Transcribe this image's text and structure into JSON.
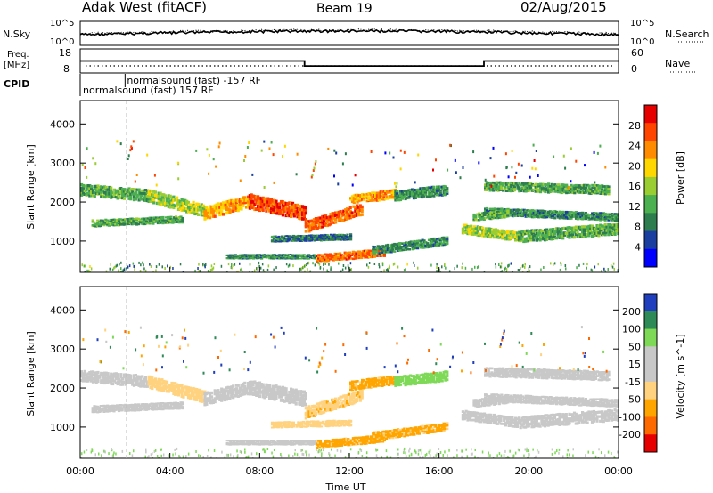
{
  "header": {
    "title": "Adak West (fitACF)",
    "beam": "Beam 19",
    "date": "02/Aug/2015"
  },
  "top_panels": {
    "nsky_label": "N.Sky",
    "nsearch_label": "N.Search",
    "nsky_ticks": [
      "10^5",
      "10^0"
    ],
    "nsearch_ticks": [
      "10^5",
      "10^0"
    ],
    "freq_label_line1": "Freq.",
    "freq_label_line2": "[MHz]",
    "freq_ticks": [
      "18",
      "8"
    ],
    "nave_label": "Nave",
    "nave_ticks": [
      "60",
      "0"
    ],
    "cpid_label": "CPID",
    "cpid_entries": [
      {
        "text": "normalsound (fast) -157 RF",
        "start_hour": 2.0
      },
      {
        "text": "normalsound (fast) 157 RF",
        "start_hour": 0.0
      }
    ],
    "freq_segments": [
      {
        "start_hour": 0,
        "end_hour": 10,
        "mhz": 13.0
      },
      {
        "start_hour": 10,
        "end_hour": 18,
        "mhz": 10.5
      },
      {
        "start_hour": 18,
        "end_hour": 24,
        "mhz": 13.0
      }
    ]
  },
  "colors": {
    "axis": "#000000",
    "power_scale": [
      "#0000ff",
      "#1a3fa0",
      "#2e7d4f",
      "#4caf50",
      "#9acd32",
      "#ffd700",
      "#ff8c00",
      "#ff4500",
      "#e60000"
    ],
    "velocity_scale": [
      "#e60000",
      "#ff6a00",
      "#ffa500",
      "#ffd27f",
      "#c8c8c8",
      "#c8c8c8",
      "#7ed957",
      "#2e8b57",
      "#1f3fbf"
    ]
  },
  "chart_data": [
    {
      "type": "heatmap",
      "name": "power",
      "title": "",
      "xlabel": "Time UT",
      "ylabel": "Slant Range [km]",
      "xlim": [
        0,
        24
      ],
      "ylim": [
        200,
        4600
      ],
      "x_ticks": [
        "00:00",
        "04:00",
        "08:00",
        "12:00",
        "16:00",
        "20:00",
        "00:00"
      ],
      "y_ticks": [
        "1000",
        "2000",
        "3000",
        "4000"
      ],
      "colorbar_label": "Power [dB]",
      "colorbar_ticks": [
        "4",
        "8",
        "12",
        "16",
        "20",
        "24",
        "28"
      ],
      "colorbar_range": [
        0,
        32
      ],
      "bands": [
        {
          "t_start": 0.0,
          "t_end": 3.0,
          "r_start": 2300,
          "r_end": 2150,
          "width": 300,
          "value": 12
        },
        {
          "t_start": 3.0,
          "t_end": 5.5,
          "r_start": 2150,
          "r_end": 1750,
          "width": 320,
          "value": 16
        },
        {
          "t_start": 5.5,
          "t_end": 7.5,
          "r_start": 1700,
          "r_end": 2000,
          "width": 330,
          "value": 22
        },
        {
          "t_start": 7.5,
          "t_end": 10.0,
          "r_start": 2000,
          "r_end": 1700,
          "width": 380,
          "value": 27
        },
        {
          "t_start": 10.0,
          "t_end": 12.5,
          "r_start": 1350,
          "r_end": 1800,
          "width": 300,
          "value": 26
        },
        {
          "t_start": 12.0,
          "t_end": 14.0,
          "r_start": 2050,
          "r_end": 2200,
          "width": 240,
          "value": 22
        },
        {
          "t_start": 0.5,
          "t_end": 4.5,
          "r_start": 1450,
          "r_end": 1550,
          "width": 180,
          "value": 12
        },
        {
          "t_start": 6.5,
          "t_end": 10.5,
          "r_start": 600,
          "r_end": 600,
          "width": 120,
          "value": 10
        },
        {
          "t_start": 10.5,
          "t_end": 13.5,
          "r_start": 550,
          "r_end": 700,
          "width": 200,
          "value": 25
        },
        {
          "t_start": 13.0,
          "t_end": 16.3,
          "r_start": 750,
          "r_end": 1000,
          "width": 220,
          "value": 10
        },
        {
          "t_start": 8.5,
          "t_end": 12.0,
          "r_start": 1050,
          "r_end": 1100,
          "width": 160,
          "value": 8
        },
        {
          "t_start": 14.0,
          "t_end": 16.3,
          "r_start": 2150,
          "r_end": 2300,
          "width": 260,
          "value": 10
        },
        {
          "t_start": 17.0,
          "t_end": 19.5,
          "r_start": 1300,
          "r_end": 1100,
          "width": 250,
          "value": 16
        },
        {
          "t_start": 19.5,
          "t_end": 24.0,
          "r_start": 1100,
          "r_end": 1300,
          "width": 300,
          "value": 12
        },
        {
          "t_start": 18.0,
          "t_end": 23.5,
          "r_start": 2400,
          "r_end": 2300,
          "width": 240,
          "value": 12
        },
        {
          "t_start": 18.0,
          "t_end": 24.0,
          "r_start": 1750,
          "r_end": 1600,
          "width": 200,
          "value": 10
        },
        {
          "t_start": 17.5,
          "t_end": 19.0,
          "r_start": 1600,
          "r_end": 1700,
          "width": 200,
          "value": 13
        }
      ]
    },
    {
      "type": "heatmap",
      "name": "velocity",
      "title": "",
      "xlabel": "Time UT",
      "ylabel": "Slant Range [km]",
      "xlim": [
        0,
        24
      ],
      "ylim": [
        200,
        4600
      ],
      "x_ticks": [
        "00:00",
        "04:00",
        "08:00",
        "12:00",
        "16:00",
        "20:00",
        "00:00"
      ],
      "y_ticks": [
        "1000",
        "2000",
        "3000",
        "4000"
      ],
      "colorbar_label": "Velocity [m s^-1]",
      "colorbar_ticks": [
        "200",
        "100",
        "50",
        "15",
        "-15",
        "-50",
        "-100",
        "-200"
      ],
      "colorbar_range": [
        -250,
        250
      ],
      "bands": [
        {
          "t_start": 0.0,
          "t_end": 3.0,
          "r_start": 2300,
          "r_end": 2150,
          "width": 300,
          "value": 0
        },
        {
          "t_start": 3.0,
          "t_end": 5.5,
          "r_start": 2150,
          "r_end": 1750,
          "width": 320,
          "value": -30
        },
        {
          "t_start": 5.5,
          "t_end": 7.5,
          "r_start": 1700,
          "r_end": 2000,
          "width": 330,
          "value": 0
        },
        {
          "t_start": 7.5,
          "t_end": 10.0,
          "r_start": 2000,
          "r_end": 1700,
          "width": 380,
          "value": 0
        },
        {
          "t_start": 10.0,
          "t_end": 12.5,
          "r_start": 1350,
          "r_end": 1800,
          "width": 300,
          "value": -40
        },
        {
          "t_start": 12.0,
          "t_end": 14.0,
          "r_start": 2050,
          "r_end": 2200,
          "width": 240,
          "value": -60
        },
        {
          "t_start": 0.5,
          "t_end": 4.5,
          "r_start": 1450,
          "r_end": 1550,
          "width": 180,
          "value": 0
        },
        {
          "t_start": 6.5,
          "t_end": 10.5,
          "r_start": 600,
          "r_end": 600,
          "width": 120,
          "value": 0
        },
        {
          "t_start": 10.5,
          "t_end": 13.5,
          "r_start": 550,
          "r_end": 700,
          "width": 200,
          "value": -60
        },
        {
          "t_start": 13.0,
          "t_end": 16.3,
          "r_start": 750,
          "r_end": 1000,
          "width": 220,
          "value": -60
        },
        {
          "t_start": 8.5,
          "t_end": 12.0,
          "r_start": 1050,
          "r_end": 1100,
          "width": 160,
          "value": -30
        },
        {
          "t_start": 14.0,
          "t_end": 16.3,
          "r_start": 2150,
          "r_end": 2300,
          "width": 260,
          "value": 30
        },
        {
          "t_start": 17.0,
          "t_end": 19.5,
          "r_start": 1300,
          "r_end": 1100,
          "width": 250,
          "value": 0
        },
        {
          "t_start": 19.5,
          "t_end": 24.0,
          "r_start": 1100,
          "r_end": 1300,
          "width": 300,
          "value": 0
        },
        {
          "t_start": 18.0,
          "t_end": 23.5,
          "r_start": 2400,
          "r_end": 2300,
          "width": 240,
          "value": 0
        },
        {
          "t_start": 18.0,
          "t_end": 24.0,
          "r_start": 1750,
          "r_end": 1600,
          "width": 200,
          "value": 0
        },
        {
          "t_start": 17.5,
          "t_end": 19.0,
          "r_start": 1600,
          "r_end": 1700,
          "width": 200,
          "value": 0
        }
      ]
    }
  ]
}
